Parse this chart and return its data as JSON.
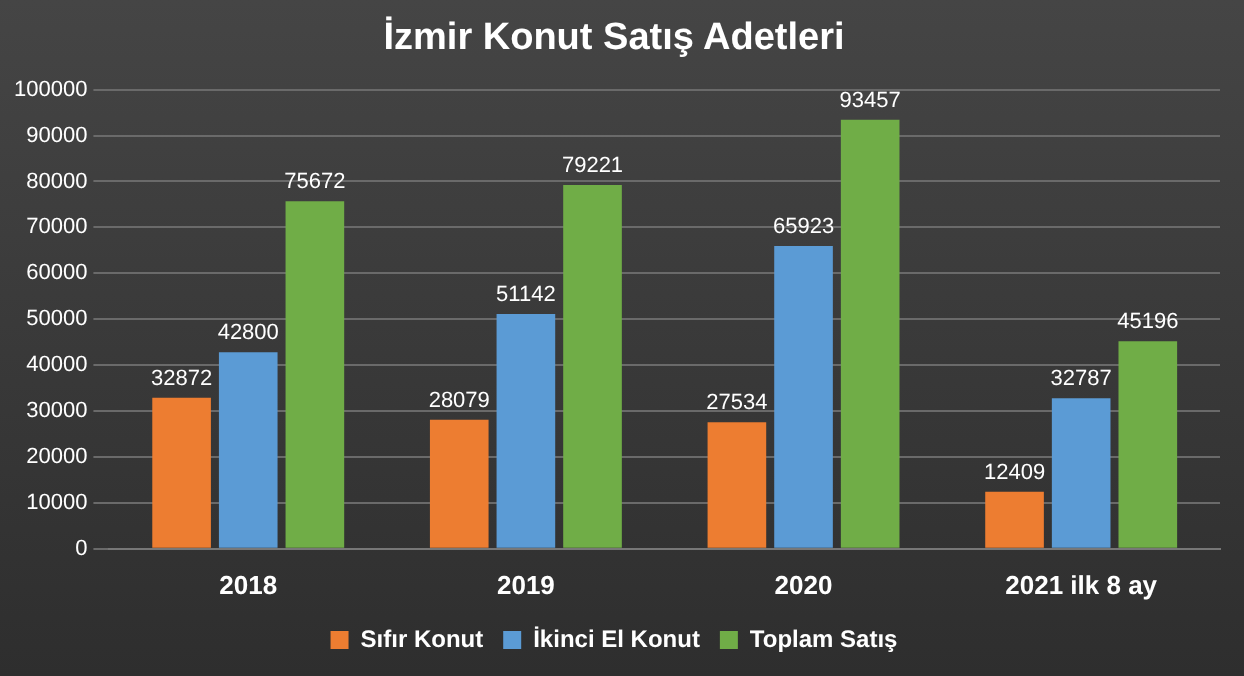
{
  "chart_data": {
    "type": "bar",
    "title": "İzmir Konut Satış Adetleri",
    "categories": [
      "2018",
      "2019",
      "2020",
      "2021 ilk 8 ay"
    ],
    "series": [
      {
        "name": "Sıfır Konut",
        "color": "#ed7d31",
        "values": [
          32872,
          28079,
          27534,
          12409
        ]
      },
      {
        "name": "İkinci El Konut",
        "color": "#5b9bd5",
        "values": [
          42800,
          51142,
          65923,
          32787
        ]
      },
      {
        "name": "Toplam Satış",
        "color": "#70ad47",
        "values": [
          75672,
          79221,
          93457,
          45196
        ]
      }
    ],
    "ylim": [
      0,
      100000
    ],
    "yticks": [
      0,
      10000,
      20000,
      30000,
      40000,
      50000,
      60000,
      70000,
      80000,
      90000,
      100000
    ],
    "grid": "y",
    "legend": "bottom",
    "data_labels": true
  }
}
